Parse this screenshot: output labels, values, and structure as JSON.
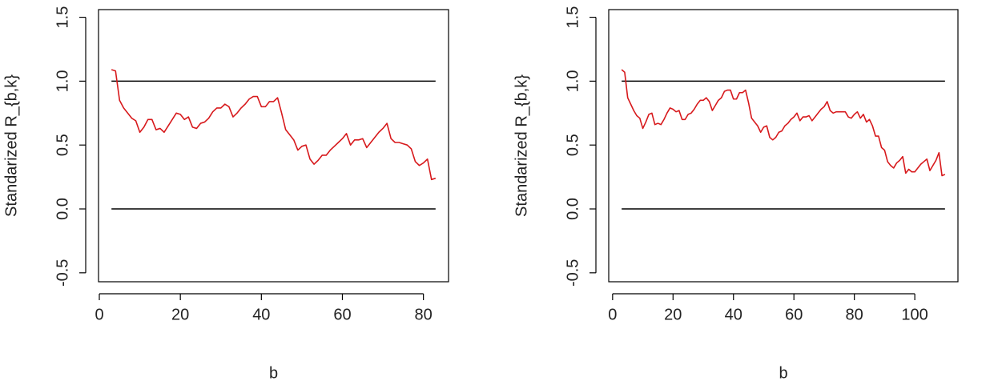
{
  "chart_data": [
    {
      "type": "line",
      "x_label": "b",
      "y_label": "Standarized R_{b,k}",
      "xlim": [
        -0.2,
        86.2
      ],
      "ylim": [
        -0.57,
        1.56
      ],
      "xticks": [
        0,
        20,
        40,
        60,
        80
      ],
      "yticks": [
        {
          "value": -0.5,
          "label": "-0.5"
        },
        {
          "value": 0,
          "label": "0.0"
        },
        {
          "value": 0.5,
          "label": "0.5"
        },
        {
          "value": 1,
          "label": "1.0"
        },
        {
          "value": 1.5,
          "label": "1.5"
        }
      ],
      "hlines": [
        0,
        1
      ],
      "hline_color": "#000000",
      "series": [
        {
          "color": "#d7191c",
          "x": [
            3,
            4,
            5,
            6,
            7,
            8,
            9,
            10,
            11,
            12,
            13,
            14,
            15,
            16,
            17,
            18,
            19,
            20,
            21,
            22,
            23,
            24,
            25,
            26,
            27,
            28,
            29,
            30,
            31,
            32,
            33,
            34,
            35,
            36,
            37,
            38,
            39,
            40,
            41,
            42,
            43,
            44,
            45,
            46,
            47,
            48,
            49,
            50,
            51,
            52,
            53,
            54,
            55,
            56,
            57,
            58,
            59,
            60,
            61,
            62,
            63,
            64,
            65,
            66,
            67,
            68,
            69,
            70,
            71,
            72,
            73,
            74,
            75,
            76,
            77,
            78,
            79,
            80,
            81,
            82,
            83
          ],
          "values": [
            1.09,
            1.08,
            0.85,
            0.79,
            0.75,
            0.71,
            0.69,
            0.6,
            0.64,
            0.7,
            0.7,
            0.62,
            0.63,
            0.6,
            0.65,
            0.7,
            0.75,
            0.74,
            0.7,
            0.72,
            0.64,
            0.63,
            0.67,
            0.68,
            0.71,
            0.76,
            0.79,
            0.79,
            0.82,
            0.8,
            0.72,
            0.75,
            0.79,
            0.82,
            0.86,
            0.88,
            0.88,
            0.8,
            0.8,
            0.84,
            0.84,
            0.87,
            0.75,
            0.62,
            0.58,
            0.54,
            0.46,
            0.49,
            0.5,
            0.39,
            0.35,
            0.38,
            0.42,
            0.42,
            0.46,
            0.49,
            0.52,
            0.55,
            0.59,
            0.5,
            0.54,
            0.54,
            0.55,
            0.48,
            0.52,
            0.56,
            0.6,
            0.63,
            0.67,
            0.55,
            0.52,
            0.52,
            0.51,
            0.5,
            0.47,
            0.37,
            0.34,
            0.36,
            0.39,
            0.23,
            0.24
          ]
        }
      ]
    },
    {
      "type": "line",
      "x_label": "b",
      "y_label": "Standarized R_{b,k}",
      "xlim": [
        -1.28,
        114.28
      ],
      "ylim": [
        -0.57,
        1.56
      ],
      "xticks": [
        0,
        20,
        40,
        60,
        80,
        100
      ],
      "yticks": [
        {
          "value": -0.5,
          "label": "-0.5"
        },
        {
          "value": 0,
          "label": "0.0"
        },
        {
          "value": 0.5,
          "label": "0.5"
        },
        {
          "value": 1,
          "label": "1.0"
        },
        {
          "value": 1.5,
          "label": "1.5"
        }
      ],
      "hlines": [
        0,
        1
      ],
      "hline_color": "#000000",
      "series": [
        {
          "color": "#d7191c",
          "x": [
            3,
            4,
            5,
            6,
            7,
            8,
            9,
            10,
            11,
            12,
            13,
            14,
            15,
            16,
            17,
            18,
            19,
            20,
            21,
            22,
            23,
            24,
            25,
            26,
            27,
            28,
            29,
            30,
            31,
            32,
            33,
            34,
            35,
            36,
            37,
            38,
            39,
            40,
            41,
            42,
            43,
            44,
            45,
            46,
            47,
            48,
            49,
            50,
            51,
            52,
            53,
            54,
            55,
            56,
            57,
            58,
            59,
            60,
            61,
            62,
            63,
            64,
            65,
            66,
            67,
            68,
            69,
            70,
            71,
            72,
            73,
            74,
            75,
            76,
            77,
            78,
            79,
            80,
            81,
            82,
            83,
            84,
            85,
            86,
            87,
            88,
            89,
            90,
            91,
            92,
            93,
            94,
            95,
            96,
            97,
            98,
            99,
            100,
            101,
            102,
            103,
            104,
            105,
            106,
            107,
            108,
            109,
            110
          ],
          "values": [
            1.09,
            1.07,
            0.87,
            0.82,
            0.77,
            0.73,
            0.71,
            0.63,
            0.68,
            0.74,
            0.75,
            0.66,
            0.67,
            0.66,
            0.7,
            0.75,
            0.79,
            0.78,
            0.76,
            0.77,
            0.7,
            0.7,
            0.74,
            0.75,
            0.78,
            0.82,
            0.85,
            0.85,
            0.87,
            0.84,
            0.77,
            0.81,
            0.85,
            0.87,
            0.92,
            0.93,
            0.93,
            0.86,
            0.86,
            0.91,
            0.91,
            0.93,
            0.83,
            0.71,
            0.68,
            0.65,
            0.6,
            0.64,
            0.65,
            0.56,
            0.54,
            0.56,
            0.6,
            0.61,
            0.65,
            0.67,
            0.7,
            0.72,
            0.75,
            0.69,
            0.72,
            0.72,
            0.73,
            0.69,
            0.72,
            0.75,
            0.78,
            0.8,
            0.84,
            0.77,
            0.75,
            0.76,
            0.76,
            0.76,
            0.76,
            0.72,
            0.71,
            0.74,
            0.76,
            0.71,
            0.74,
            0.68,
            0.7,
            0.65,
            0.57,
            0.57,
            0.48,
            0.46,
            0.37,
            0.34,
            0.32,
            0.36,
            0.38,
            0.41,
            0.28,
            0.31,
            0.29,
            0.29,
            0.32,
            0.35,
            0.37,
            0.39,
            0.3,
            0.34,
            0.38,
            0.44,
            0.26,
            0.27
          ]
        }
      ]
    }
  ]
}
